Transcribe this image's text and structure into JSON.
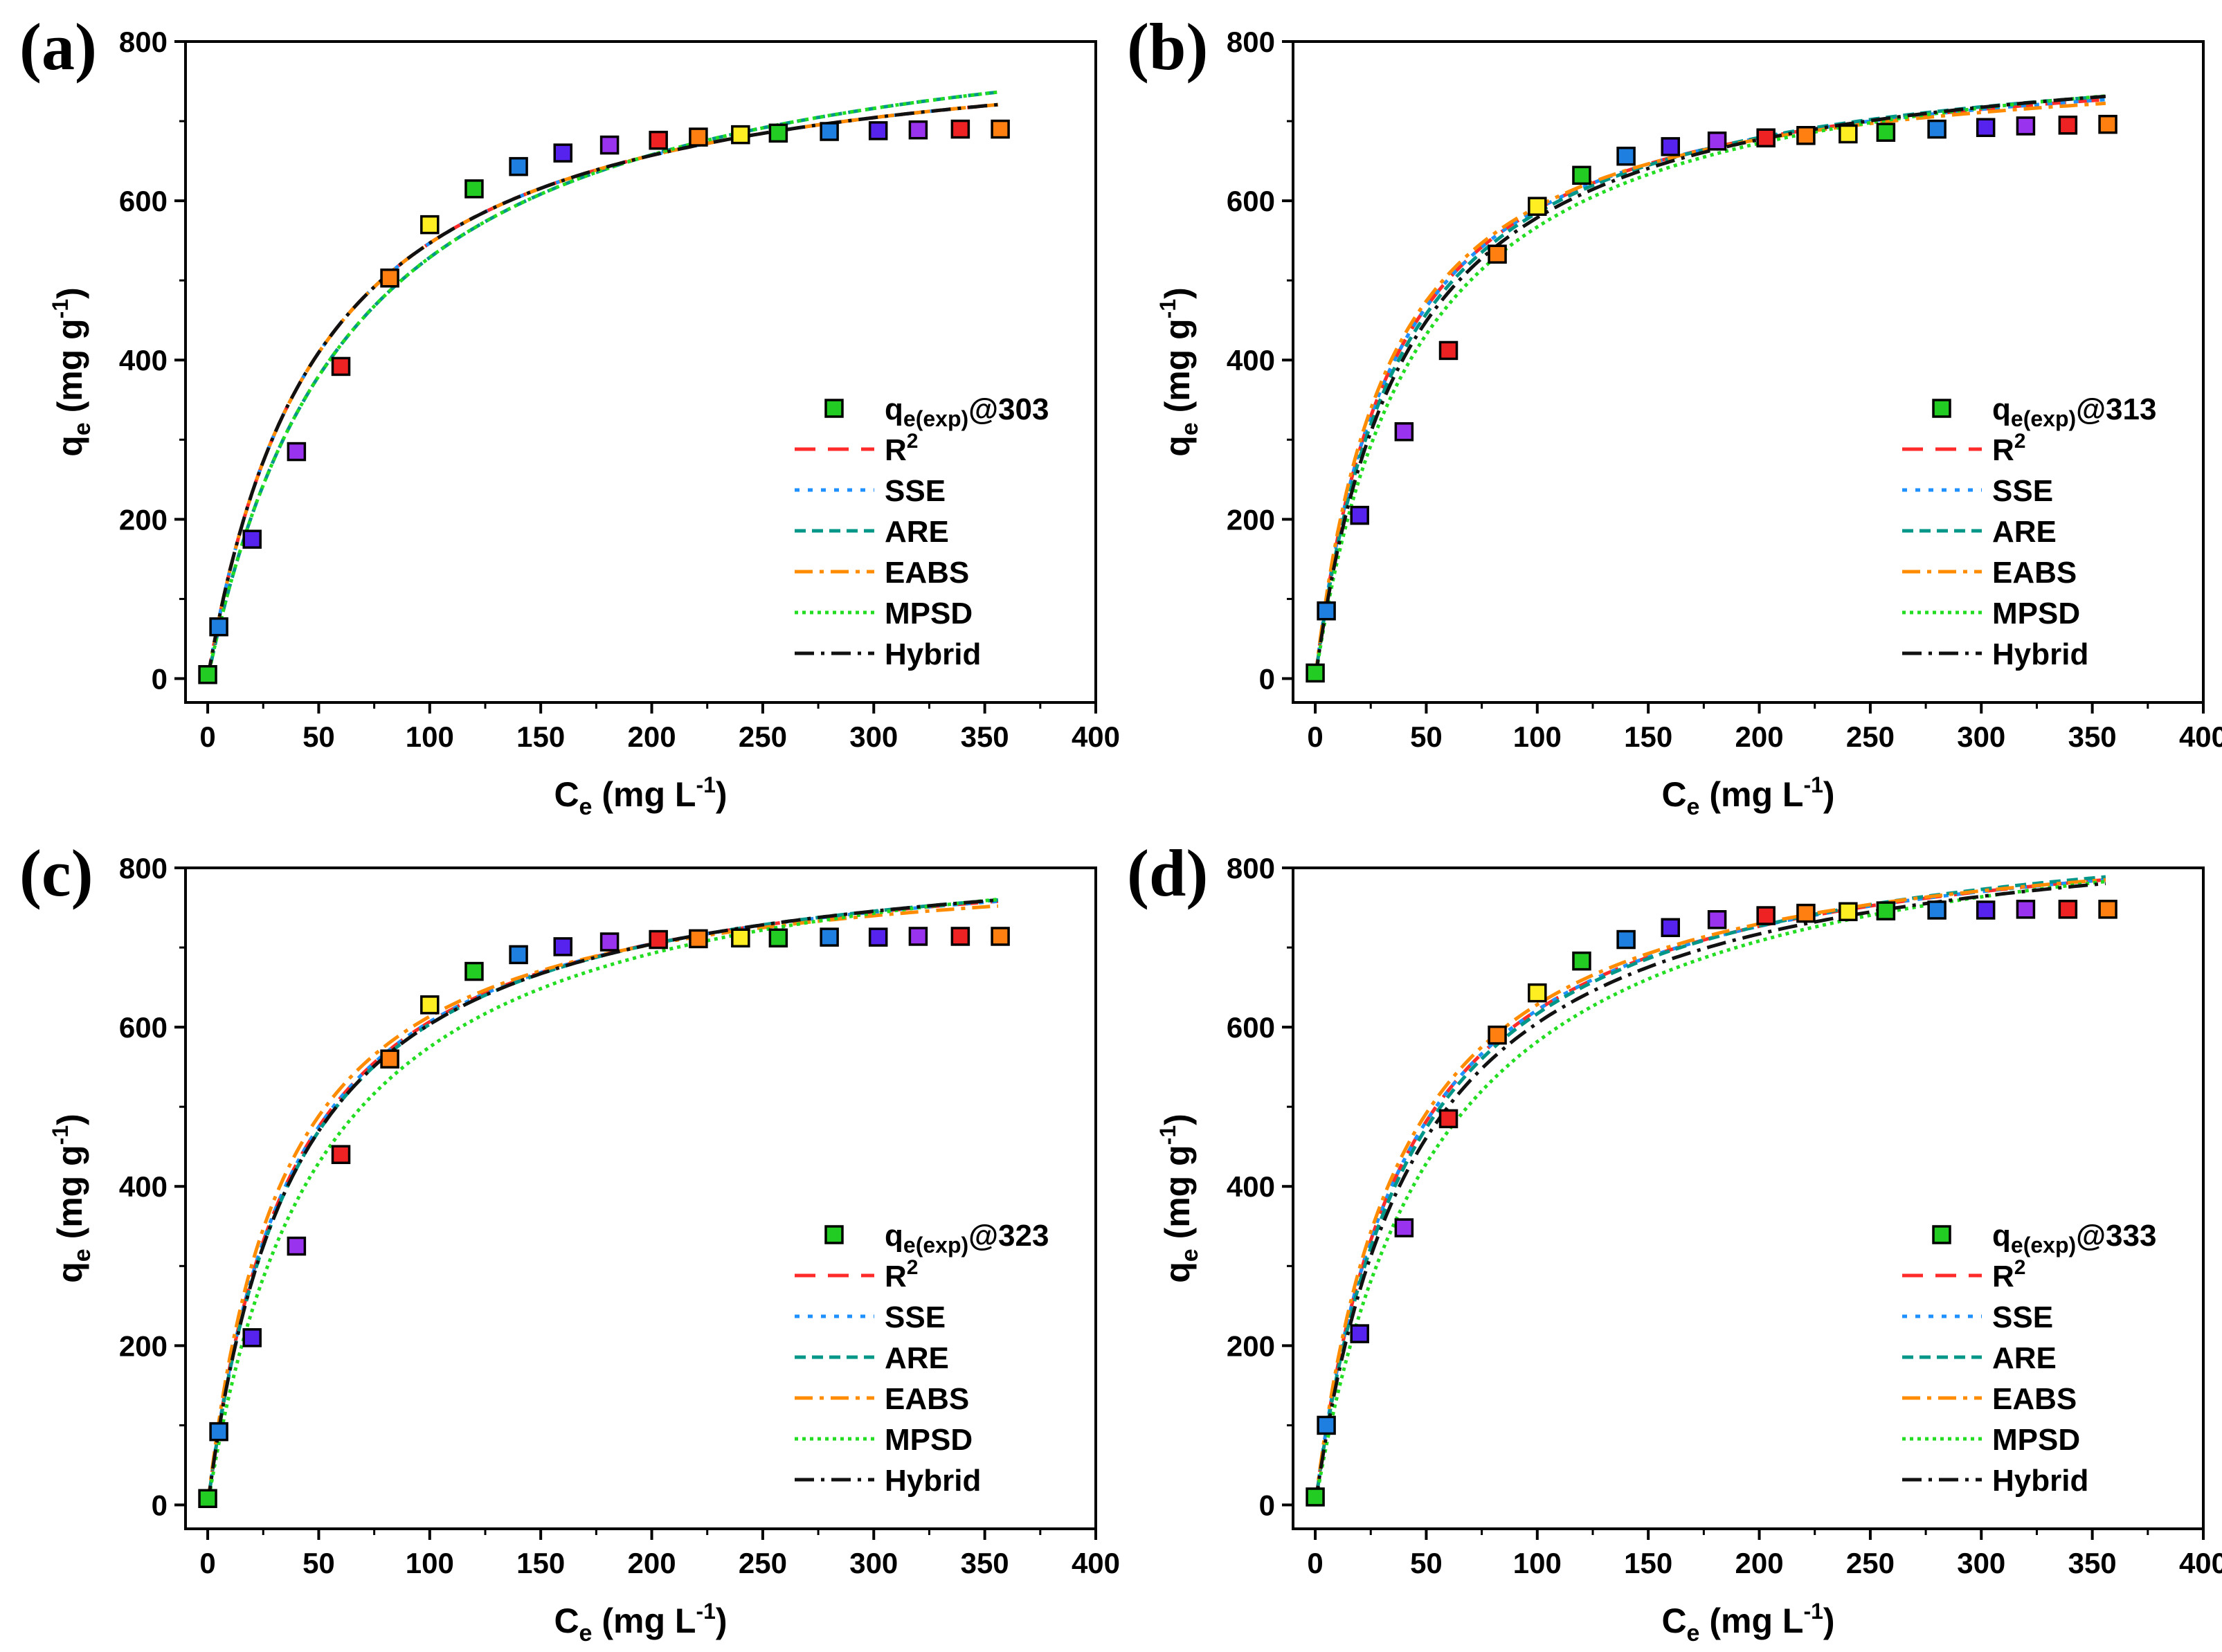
{
  "figure": {
    "panels": [
      {
        "label": "(a)",
        "legend_first": "@303"
      },
      {
        "label": "(b)",
        "legend_first": "@313"
      },
      {
        "label": "(c)",
        "legend_first": "@323"
      },
      {
        "label": "(d)",
        "legend_first": "@333"
      }
    ],
    "legend_labels": [
      "R",
      "SSE",
      "ARE",
      "EABS",
      "MPSD",
      "Hybrid"
    ],
    "legend_exp_prefix": "q",
    "legend_exp_sub": "e(exp)",
    "x_axis_title": "C",
    "x_axis_sub": "e",
    "x_axis_unit": "(mg L",
    "x_axis_sup": "-1",
    "y_axis_title": "q",
    "y_axis_sub": "e",
    "y_axis_unit": "(mg g",
    "y_axis_sup": "-1"
  },
  "style": {
    "curve_colors": {
      "R2": "#ff2a2a",
      "SSE": "#1e90ff",
      "ARE": "#009688",
      "EABS": "#ff8c00",
      "MPSD": "#22dd22",
      "Hybrid": "#111111"
    },
    "marker_palette": [
      "#22cc22",
      "#1f7fe0",
      "#5522ee",
      "#9933ee",
      "#ee2222",
      "#ff7f11",
      "#ffee22"
    ]
  },
  "chart_data": [
    {
      "type": "scatter",
      "title": "(a)",
      "xlabel": "Ce (mg L-1)",
      "ylabel": "qe (mg g-1)",
      "xlim": [
        -10,
        400
      ],
      "ylim": [
        -30,
        800
      ],
      "xticks": [
        0,
        50,
        100,
        150,
        200,
        250,
        300,
        350,
        400
      ],
      "yticks": [
        0,
        200,
        400,
        600,
        800
      ],
      "legend_position": "lower-right",
      "series": [
        {
          "name": "qe(exp)@303",
          "x": [
            0,
            5,
            20,
            40,
            60,
            82,
            100,
            120,
            140,
            160,
            181,
            203,
            221,
            240,
            257,
            280,
            302,
            320,
            339,
            357
          ],
          "y": [
            5,
            65,
            175,
            285,
            392,
            503,
            570,
            615,
            643,
            660,
            670,
            676,
            680,
            683,
            685,
            687,
            688,
            689,
            690,
            690
          ],
          "colors": [
            "#22cc22",
            "#1f7fe0",
            "#5522ee",
            "#9933ee",
            "#ee2222",
            "#ff7f11",
            "#ffee22",
            "#22cc22",
            "#1f7fe0",
            "#5522ee",
            "#9933ee",
            "#ee2222",
            "#ff7f11",
            "#ffee22",
            "#22cc22",
            "#1f7fe0",
            "#5522ee",
            "#9933ee",
            "#ee2222",
            "#ff7f11"
          ]
        },
        {
          "name": "R2",
          "qm": 823,
          "K": 0.0198
        },
        {
          "name": "SSE",
          "qm": 823,
          "K": 0.0198
        },
        {
          "name": "ARE",
          "qm": 870,
          "K": 0.0155
        },
        {
          "name": "EABS",
          "qm": 823,
          "K": 0.0198
        },
        {
          "name": "MPSD",
          "qm": 870,
          "K": 0.0155
        },
        {
          "name": "Hybrid",
          "qm": 823,
          "K": 0.0198
        }
      ]
    },
    {
      "type": "scatter",
      "title": "(b)",
      "xlabel": "Ce (mg L-1)",
      "ylabel": "qe (mg g-1)",
      "xlim": [
        -10,
        400
      ],
      "ylim": [
        -30,
        800
      ],
      "xticks": [
        0,
        50,
        100,
        150,
        200,
        250,
        300,
        350,
        400
      ],
      "yticks": [
        0,
        200,
        400,
        600,
        800
      ],
      "legend_position": "lower-right",
      "series": [
        {
          "name": "qe(exp)@313",
          "x": [
            0,
            5,
            20,
            40,
            60,
            82,
            100,
            120,
            140,
            160,
            181,
            203,
            221,
            240,
            257,
            280,
            302,
            320,
            339,
            357
          ],
          "y": [
            7,
            85,
            205,
            310,
            412,
            533,
            593,
            632,
            656,
            668,
            675,
            679,
            682,
            684,
            686,
            690,
            692,
            694,
            695,
            696
          ],
          "colors": [
            "#22cc22",
            "#1f7fe0",
            "#5522ee",
            "#9933ee",
            "#ee2222",
            "#ff7f11",
            "#ffee22",
            "#22cc22",
            "#1f7fe0",
            "#5522ee",
            "#9933ee",
            "#ee2222",
            "#ff7f11",
            "#ffee22",
            "#22cc22",
            "#1f7fe0",
            "#5522ee",
            "#9933ee",
            "#ee2222",
            "#ff7f11"
          ]
        },
        {
          "name": "R2",
          "qm": 800,
          "K": 0.028
        },
        {
          "name": "SSE",
          "qm": 800,
          "K": 0.028
        },
        {
          "name": "ARE",
          "qm": 810,
          "K": 0.026
        },
        {
          "name": "EABS",
          "qm": 790,
          "K": 0.03
        },
        {
          "name": "MPSD",
          "qm": 825,
          "K": 0.022
        },
        {
          "name": "Hybrid",
          "qm": 815,
          "K": 0.0245
        }
      ]
    },
    {
      "type": "scatter",
      "title": "(c)",
      "xlabel": "Ce (mg L-1)",
      "ylabel": "qe (mg g-1)",
      "xlim": [
        -10,
        400
      ],
      "ylim": [
        -30,
        800
      ],
      "xticks": [
        0,
        50,
        100,
        150,
        200,
        250,
        300,
        350,
        400
      ],
      "yticks": [
        0,
        200,
        400,
        600,
        800
      ],
      "legend_position": "lower-right",
      "series": [
        {
          "name": "qe(exp)@323",
          "x": [
            0,
            5,
            20,
            40,
            60,
            82,
            100,
            120,
            140,
            160,
            181,
            203,
            221,
            240,
            257,
            280,
            302,
            320,
            339,
            357
          ],
          "y": [
            8,
            92,
            210,
            325,
            440,
            560,
            628,
            670,
            691,
            701,
            707,
            710,
            711,
            712,
            712,
            713,
            713,
            714,
            714,
            714
          ],
          "colors": [
            "#22cc22",
            "#1f7fe0",
            "#5522ee",
            "#9933ee",
            "#ee2222",
            "#ff7f11",
            "#ffee22",
            "#22cc22",
            "#1f7fe0",
            "#5522ee",
            "#9933ee",
            "#ee2222",
            "#ff7f11",
            "#ffee22",
            "#22cc22",
            "#1f7fe0",
            "#5522ee",
            "#9933ee",
            "#ee2222",
            "#ff7f11"
          ]
        },
        {
          "name": "R2",
          "qm": 840,
          "K": 0.026
        },
        {
          "name": "SSE",
          "qm": 840,
          "K": 0.026
        },
        {
          "name": "ARE",
          "qm": 845,
          "K": 0.025
        },
        {
          "name": "EABS",
          "qm": 825,
          "K": 0.029
        },
        {
          "name": "MPSD",
          "qm": 870,
          "K": 0.0195
        },
        {
          "name": "Hybrid",
          "qm": 845,
          "K": 0.025
        }
      ]
    },
    {
      "type": "scatter",
      "title": "(d)",
      "xlabel": "Ce (mg L-1)",
      "ylabel": "qe (mg g-1)",
      "xlim": [
        -10,
        400
      ],
      "ylim": [
        -30,
        800
      ],
      "xticks": [
        0,
        50,
        100,
        150,
        200,
        250,
        300,
        350,
        400
      ],
      "yticks": [
        0,
        200,
        400,
        600,
        800
      ],
      "legend_position": "lower-right",
      "series": [
        {
          "name": "qe(exp)@333",
          "x": [
            0,
            5,
            20,
            40,
            60,
            82,
            100,
            120,
            140,
            160,
            181,
            203,
            221,
            240,
            257,
            280,
            302,
            320,
            339,
            357
          ],
          "y": [
            10,
            100,
            215,
            348,
            485,
            590,
            643,
            683,
            710,
            725,
            735,
            740,
            743,
            745,
            746,
            747,
            747,
            748,
            748,
            748
          ],
          "colors": [
            "#22cc22",
            "#1f7fe0",
            "#5522ee",
            "#9933ee",
            "#ee2222",
            "#ff7f11",
            "#ffee22",
            "#22cc22",
            "#1f7fe0",
            "#5522ee",
            "#9933ee",
            "#ee2222",
            "#ff7f11",
            "#ffee22",
            "#22cc22",
            "#1f7fe0",
            "#5522ee",
            "#9933ee",
            "#ee2222",
            "#ff7f11"
          ]
        },
        {
          "name": "R2",
          "qm": 875,
          "K": 0.0245
        },
        {
          "name": "SSE",
          "qm": 875,
          "K": 0.0245
        },
        {
          "name": "ARE",
          "qm": 885,
          "K": 0.023
        },
        {
          "name": "EABS",
          "qm": 870,
          "K": 0.026
        },
        {
          "name": "MPSD",
          "qm": 905,
          "K": 0.018
        },
        {
          "name": "Hybrid",
          "qm": 880,
          "K": 0.022
        }
      ]
    }
  ]
}
